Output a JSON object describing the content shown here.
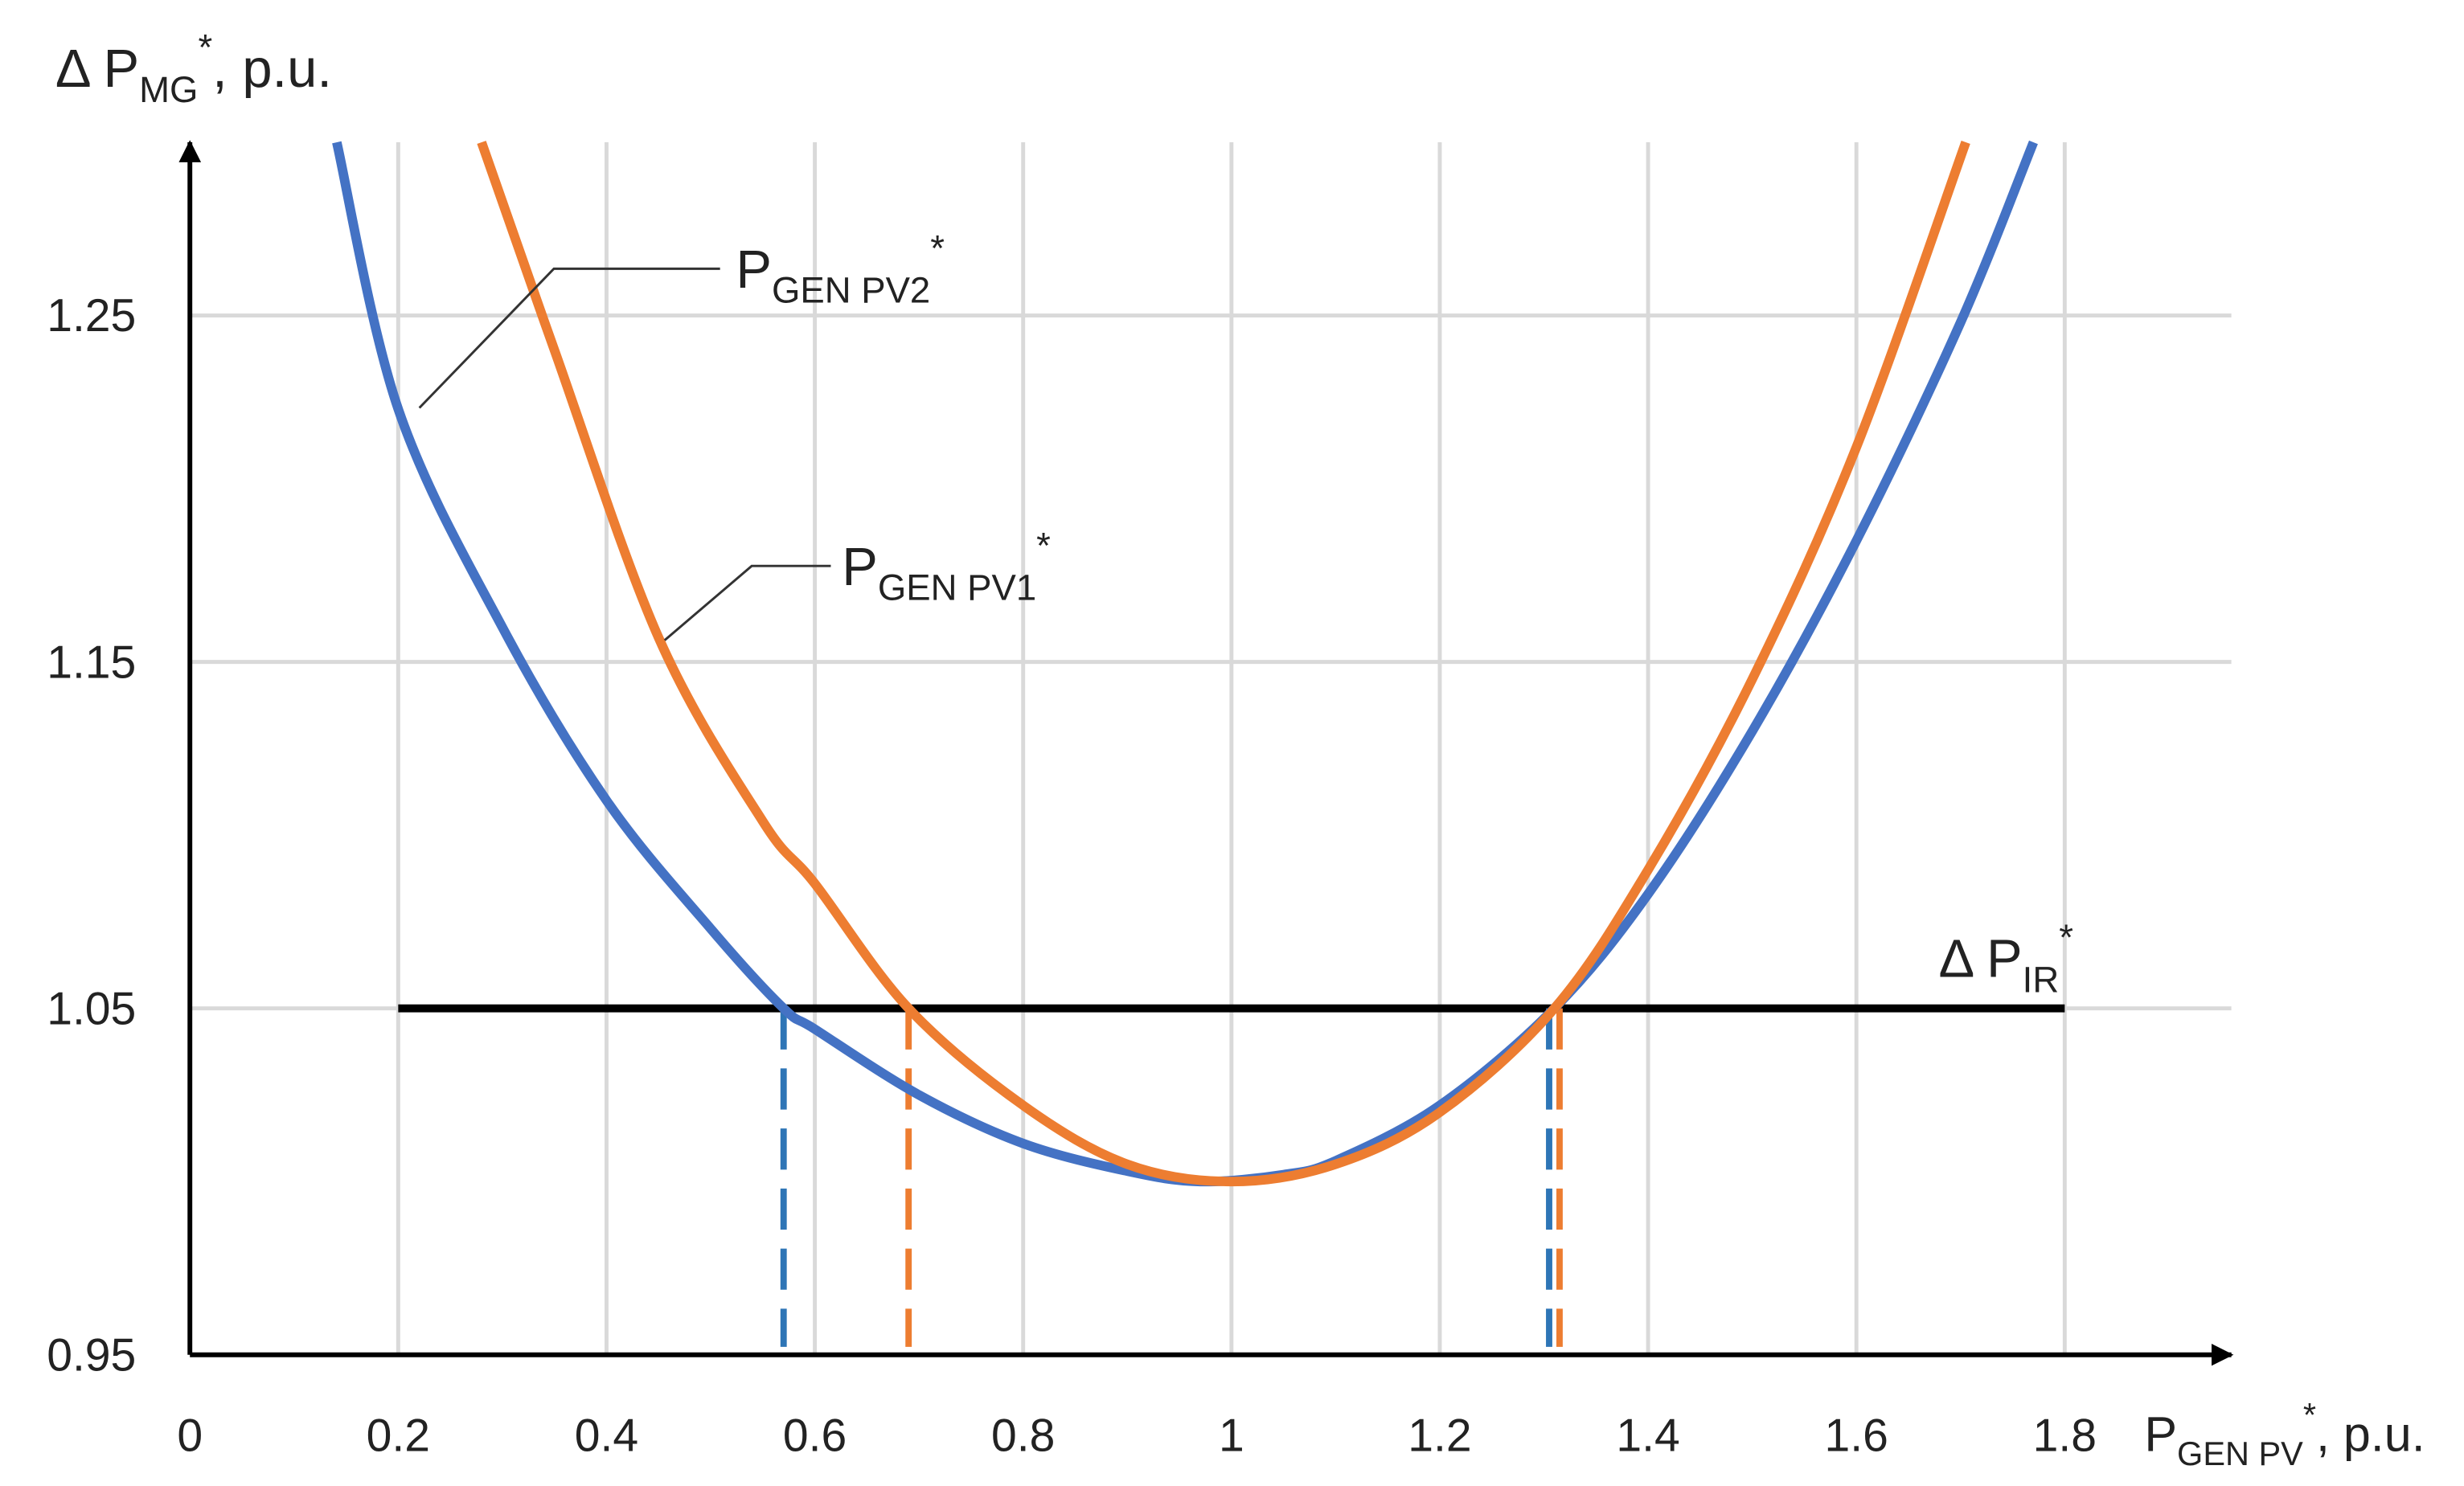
{
  "chart_data": {
    "type": "line",
    "y_label": {
      "main": "Δ P",
      "sub": "MG",
      "sup": "*",
      "tail": ", p.u."
    },
    "x_label": {
      "main": "P",
      "sub": "GEN PV",
      "sup": "*",
      "tail": ", p.u."
    },
    "xlim": [
      0,
      1.96
    ],
    "ylim": [
      0.95,
      1.3
    ],
    "xticks": [
      0,
      0.2,
      0.4,
      0.6,
      0.8,
      1,
      1.2,
      1.4,
      1.6,
      1.8
    ],
    "yticks": [
      0.95,
      1.05,
      1.15,
      1.25
    ],
    "grid": true,
    "series": [
      {
        "label": {
          "main": "P",
          "sub": "GEN PV2",
          "sup": "*"
        },
        "color": "#4472c4",
        "x": [
          0.141,
          0.2,
          0.3,
          0.4,
          0.5,
          0.57,
          0.6,
          0.7,
          0.8,
          0.9,
          0.97,
          1.05,
          1.1,
          1.2,
          1.31,
          1.4,
          1.5,
          1.6,
          1.7,
          1.77
        ],
        "values": [
          1.3,
          1.223,
          1.16,
          1.11,
          1.073,
          1.05,
          1.044,
          1.025,
          1.011,
          1.003,
          1.0,
          1.002,
          1.006,
          1.022,
          1.05,
          1.083,
          1.13,
          1.185,
          1.248,
          1.3
        ]
      },
      {
        "label": {
          "main": "P",
          "sub": "GEN PV1",
          "sup": "*"
        },
        "color": "#ed7d31",
        "x": [
          0.28,
          0.35,
          0.45,
          0.55,
          0.6,
          0.69,
          0.8,
          0.9,
          1.0,
          1.1,
          1.2,
          1.31,
          1.4,
          1.5,
          1.6,
          1.705
        ],
        "values": [
          1.3,
          1.24,
          1.157,
          1.104,
          1.086,
          1.05,
          1.022,
          1.005,
          1.0,
          1.005,
          1.02,
          1.05,
          1.09,
          1.145,
          1.212,
          1.3
        ]
      }
    ],
    "threshold": {
      "label": {
        "main": "Δ P",
        "sub": "IR",
        "sup": "*"
      },
      "value": 1.05,
      "x": [
        0.2,
        1.8
      ],
      "color": "#000000"
    },
    "markers": [
      {
        "x": 0.57,
        "color": "#2e75b6"
      },
      {
        "x": 0.69,
        "color": "#ed7d31"
      },
      {
        "x": 1.305,
        "color": "#2e75b6"
      },
      {
        "x": 1.315,
        "color": "#ed7d31"
      }
    ]
  }
}
